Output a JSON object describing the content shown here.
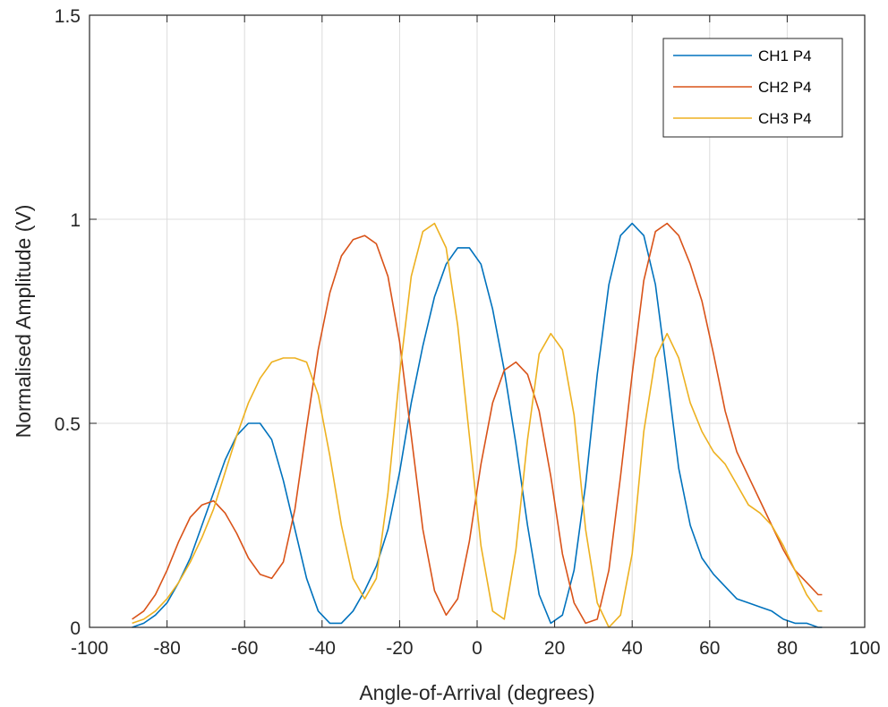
{
  "chart_data": {
    "type": "line",
    "xlabel": "Angle-of-Arrival (degrees)",
    "ylabel": "Normalised Amplitude (V)",
    "xlim": [
      -100,
      100
    ],
    "ylim": [
      0,
      1.5
    ],
    "x_ticks": [
      "-100",
      "-80",
      "-60",
      "-40",
      "-20",
      "0",
      "20",
      "40",
      "60",
      "80",
      "100"
    ],
    "y_ticks": [
      "0",
      "0.5",
      "1",
      "1.5"
    ],
    "grid": true,
    "legend_position": "top-right",
    "x": [
      -89,
      -86,
      -83,
      -80,
      -77,
      -74,
      -71,
      -68,
      -65,
      -62,
      -59,
      -56,
      -53,
      -50,
      -47,
      -44,
      -41,
      -38,
      -35,
      -32,
      -29,
      -26,
      -23,
      -20,
      -17,
      -14,
      -11,
      -8,
      -5,
      -2,
      1,
      4,
      7,
      10,
      13,
      16,
      19,
      22,
      25,
      28,
      31,
      34,
      37,
      40,
      43,
      46,
      49,
      52,
      55,
      58,
      61,
      64,
      67,
      70,
      73,
      76,
      79,
      82,
      85,
      88,
      89
    ],
    "series": [
      {
        "name": "CH1 P4",
        "color": "#0072BD",
        "values": [
          0.0,
          0.01,
          0.03,
          0.06,
          0.11,
          0.17,
          0.25,
          0.33,
          0.41,
          0.47,
          0.5,
          0.5,
          0.46,
          0.36,
          0.24,
          0.12,
          0.04,
          0.01,
          0.01,
          0.04,
          0.09,
          0.15,
          0.24,
          0.38,
          0.55,
          0.69,
          0.81,
          0.89,
          0.93,
          0.93,
          0.89,
          0.78,
          0.63,
          0.45,
          0.25,
          0.08,
          0.01,
          0.03,
          0.14,
          0.35,
          0.62,
          0.84,
          0.96,
          0.99,
          0.96,
          0.84,
          0.62,
          0.39,
          0.25,
          0.17,
          0.13,
          0.1,
          0.07,
          0.06,
          0.05,
          0.04,
          0.02,
          0.01,
          0.01,
          0.0,
          0.0
        ]
      },
      {
        "name": "CH2 P4",
        "color": "#D95319",
        "values": [
          0.02,
          0.04,
          0.08,
          0.14,
          0.21,
          0.27,
          0.3,
          0.31,
          0.28,
          0.23,
          0.17,
          0.13,
          0.12,
          0.16,
          0.29,
          0.49,
          0.68,
          0.82,
          0.91,
          0.95,
          0.96,
          0.94,
          0.86,
          0.7,
          0.47,
          0.24,
          0.09,
          0.03,
          0.07,
          0.21,
          0.4,
          0.55,
          0.63,
          0.65,
          0.62,
          0.53,
          0.37,
          0.18,
          0.06,
          0.01,
          0.02,
          0.14,
          0.37,
          0.62,
          0.85,
          0.97,
          0.99,
          0.96,
          0.89,
          0.8,
          0.67,
          0.53,
          0.43,
          0.37,
          0.31,
          0.25,
          0.19,
          0.14,
          0.11,
          0.08,
          0.08
        ]
      },
      {
        "name": "CH3 P4",
        "color": "#EDB120",
        "values": [
          0.01,
          0.02,
          0.04,
          0.07,
          0.11,
          0.16,
          0.22,
          0.29,
          0.38,
          0.47,
          0.55,
          0.61,
          0.65,
          0.66,
          0.66,
          0.65,
          0.57,
          0.42,
          0.25,
          0.12,
          0.07,
          0.12,
          0.33,
          0.62,
          0.86,
          0.97,
          0.99,
          0.93,
          0.74,
          0.47,
          0.2,
          0.04,
          0.02,
          0.19,
          0.46,
          0.67,
          0.72,
          0.68,
          0.52,
          0.24,
          0.06,
          0.0,
          0.03,
          0.18,
          0.48,
          0.66,
          0.72,
          0.66,
          0.55,
          0.48,
          0.43,
          0.4,
          0.35,
          0.3,
          0.28,
          0.25,
          0.2,
          0.14,
          0.08,
          0.04,
          0.04
        ]
      }
    ]
  }
}
